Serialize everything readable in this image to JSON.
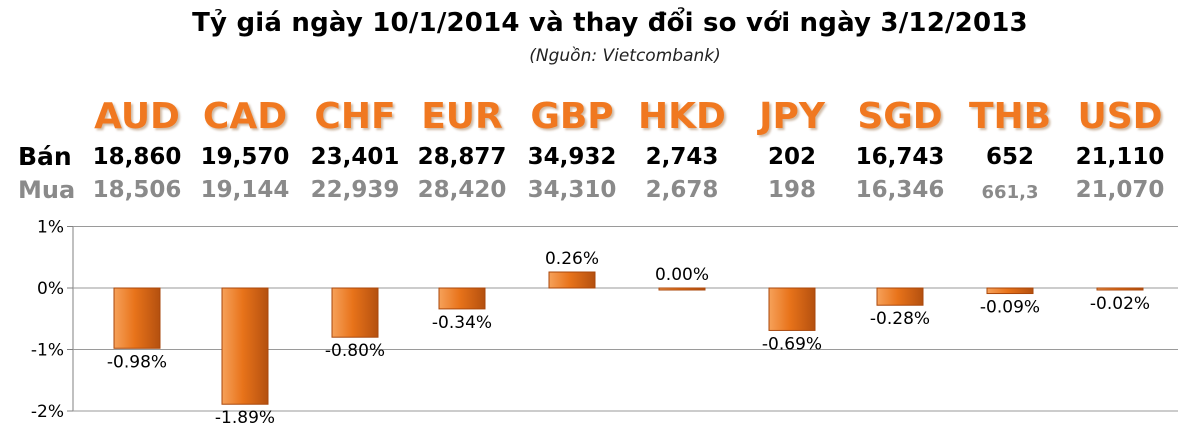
{
  "chart_data": {
    "type": "bar",
    "title": "Tỷ giá ngày 10/1/2014 và thay đổi so với ngày 3/12/2013",
    "subtitle": "(Nguồn: Vietcombank)",
    "row_labels": {
      "sell": "Bán",
      "buy": "Mua"
    },
    "categories": [
      "AUD",
      "CAD",
      "CHF",
      "EUR",
      "GBP",
      "HKD",
      "JPY",
      "SGD",
      "THB",
      "USD"
    ],
    "sell": [
      "18,860",
      "19,570",
      "23,401",
      "28,877",
      "34,932",
      "2,743",
      "202",
      "16,743",
      "652",
      "21,110"
    ],
    "buy": [
      "18,506",
      "19,144",
      "22,939",
      "28,420",
      "34,310",
      "2,678",
      "198",
      "16,346",
      "661,3",
      "21,070"
    ],
    "values": [
      -0.98,
      -1.89,
      -0.8,
      -0.34,
      0.26,
      0.0,
      -0.69,
      -0.28,
      -0.09,
      -0.02
    ],
    "labels": [
      "-0.98%",
      "-1.89%",
      "-0.80%",
      "-0.34%",
      "0.26%",
      "0.00%",
      "-0.69%",
      "-0.28%",
      "-0.09%",
      "-0.02%"
    ],
    "y_ticks": [
      1,
      0,
      -1,
      -2
    ],
    "y_tick_labels": [
      "1%",
      "0%",
      "-1%",
      "-2%"
    ],
    "ylim": [
      -2,
      1
    ],
    "colors": {
      "bar": "#e8731a",
      "bar_light": "#f6a15a",
      "bar_dark": "#a9470b",
      "currency": "#f07820",
      "buy_text": "#8a8a8a"
    }
  }
}
